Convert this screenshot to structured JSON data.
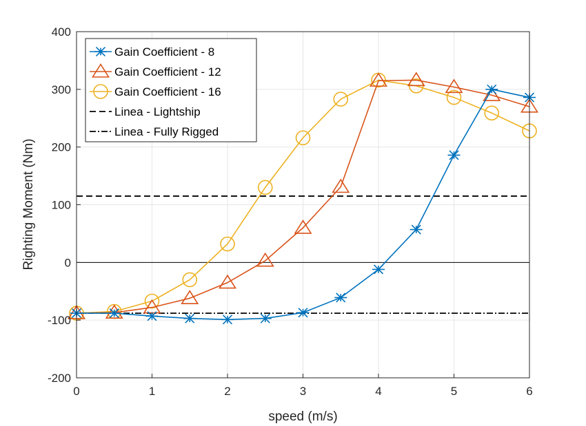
{
  "chart_data": {
    "type": "line",
    "xlabel": "speed (m/s)",
    "ylabel": "Righting Moment (Nm)",
    "xlim": [
      0,
      6
    ],
    "ylim": [
      -200,
      400
    ],
    "xticks": [
      0,
      1,
      2,
      3,
      4,
      5,
      6
    ],
    "yticks": [
      -200,
      -100,
      0,
      100,
      200,
      300,
      400
    ],
    "grid": true,
    "legend_position": "top-left",
    "x": [
      0,
      0.5,
      1,
      1.5,
      2,
      2.5,
      3,
      3.5,
      4,
      4.5,
      5,
      5.5,
      6
    ],
    "series": [
      {
        "name": "Gain Coefficient - 8",
        "marker": "asterisk",
        "color": "#0072BD",
        "values": [
          -88,
          -88,
          -93,
          -97,
          -99,
          -97,
          -87,
          -61,
          -12,
          57,
          186,
          300,
          286
        ]
      },
      {
        "name": "Gain Coefficient - 12",
        "marker": "triangle",
        "color": "#D95319",
        "values": [
          -88,
          -87,
          -78,
          -62,
          -35,
          3,
          60,
          131,
          315,
          316,
          304,
          290,
          270
        ]
      },
      {
        "name": "Gain Coefficient - 16",
        "marker": "circle",
        "color": "#EDB120",
        "values": [
          -88,
          -85,
          -67,
          -30,
          32,
          130,
          216,
          283,
          316,
          306,
          286,
          259,
          228
        ]
      }
    ],
    "reference_lines": [
      {
        "name": "Linea - Lightship",
        "y": 115,
        "style": "dashed",
        "color": "#000000"
      },
      {
        "name": "Linea - Fully Rigged",
        "y": -88,
        "style": "dash-dot",
        "color": "#000000"
      }
    ],
    "zero_line": {
      "y": 0,
      "color": "#000000"
    }
  }
}
